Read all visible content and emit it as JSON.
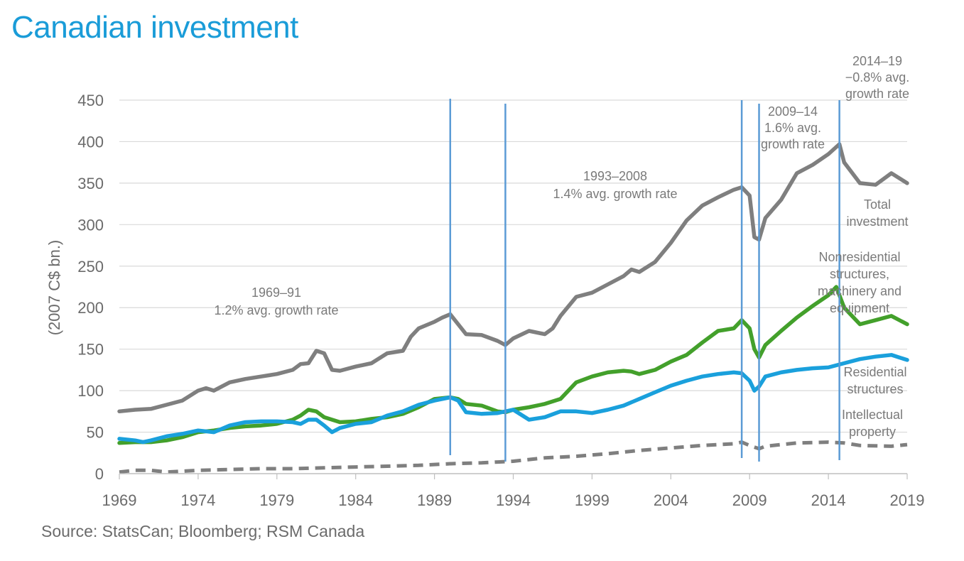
{
  "title": "Canadian investment",
  "source": "Source: StatsCan; Bloomberg; RSM  Canada",
  "colors": {
    "title": "#1a9cd8",
    "total": "#7f7f7f",
    "nonresidential": "#43a02b",
    "residential": "#1aa0dc",
    "intellectual": "#7f7f7f",
    "vlines": "#5b9bd5",
    "grid": "#d9d9d9",
    "axis": "#bfbfbf"
  },
  "chart_data": {
    "type": "line",
    "ylabel": "(2007 C$ bn.)",
    "ylim": [
      0,
      450
    ],
    "yticks": [
      "0",
      "50",
      "100",
      "150",
      "200",
      "250",
      "300",
      "350",
      "400",
      "450"
    ],
    "xlim": [
      1969,
      2019
    ],
    "xticks": [
      "1969",
      "1974",
      "1979",
      "1984",
      "1989",
      "1994",
      "1999",
      "2004",
      "2009",
      "2014",
      "2019"
    ],
    "period_markers": [
      1990.0,
      1993.5,
      2008.5,
      2009.6,
      2014.7
    ],
    "annotations": [
      {
        "lines": [
          "1969–91",
          "1.2% avg. growth rate"
        ]
      },
      {
        "lines": [
          "1993–2008",
          "1.4% avg. growth rate"
        ]
      },
      {
        "lines": [
          "2009–14",
          "1.6% avg.",
          "growth rate"
        ]
      },
      {
        "lines": [
          "2014–19",
          "−0.8% avg.",
          "growth rate"
        ]
      }
    ],
    "series": [
      {
        "name": "Total investment",
        "label_lines": [
          "Total",
          "investment"
        ],
        "style": "solid",
        "x": [
          1969,
          1970,
          1971,
          1972,
          1973,
          1974,
          1974.5,
          1975,
          1976,
          1977,
          1978,
          1979,
          1980,
          1980.5,
          1981,
          1981.5,
          1982,
          1982.5,
          1983,
          1984,
          1985,
          1986,
          1987,
          1987.5,
          1988,
          1989,
          1989.5,
          1990,
          1990.5,
          1991,
          1992,
          1993,
          1993.5,
          1994,
          1995,
          1996,
          1996.5,
          1997,
          1998,
          1999,
          2000,
          2001,
          2001.5,
          2002,
          2003,
          2004,
          2005,
          2006,
          2007,
          2008,
          2008.5,
          2009,
          2009.3,
          2009.6,
          2010,
          2011,
          2012,
          2013,
          2014,
          2014.7,
          2015,
          2016,
          2017,
          2018,
          2019
        ],
        "values": [
          75,
          77,
          78,
          83,
          88,
          100,
          103,
          100,
          110,
          114,
          117,
          120,
          125,
          132,
          133,
          148,
          145,
          125,
          124,
          129,
          133,
          145,
          148,
          165,
          175,
          183,
          188,
          192,
          180,
          168,
          167,
          160,
          155,
          163,
          172,
          168,
          175,
          190,
          213,
          218,
          228,
          238,
          246,
          243,
          255,
          278,
          305,
          323,
          333,
          342,
          345,
          335,
          285,
          282,
          308,
          330,
          362,
          372,
          385,
          397,
          375,
          350,
          348,
          362,
          350
        ]
      },
      {
        "name": "Nonresidential structures, machinery and equipment",
        "label_lines": [
          "Nonresidential",
          "structures,",
          "machinery and",
          "equipment"
        ],
        "style": "solid",
        "x": [
          1969,
          1970,
          1971,
          1972,
          1973,
          1974,
          1975,
          1976,
          1977,
          1978,
          1979,
          1980,
          1980.5,
          1981,
          1981.5,
          1982,
          1983,
          1984,
          1985,
          1986,
          1987,
          1988,
          1989,
          1990,
          1990.5,
          1991,
          1992,
          1993,
          1993.5,
          1994,
          1995,
          1996,
          1997,
          1998,
          1999,
          2000,
          2001,
          2001.5,
          2002,
          2003,
          2004,
          2005,
          2006,
          2007,
          2008,
          2008.5,
          2009,
          2009.3,
          2009.6,
          2010,
          2011,
          2012,
          2013,
          2014,
          2014.5,
          2015,
          2016,
          2017,
          2018,
          2019
        ],
        "values": [
          37,
          38,
          38,
          40,
          44,
          50,
          52,
          55,
          57,
          58,
          60,
          65,
          70,
          77,
          75,
          68,
          62,
          63,
          66,
          68,
          72,
          80,
          90,
          92,
          90,
          84,
          82,
          75,
          74,
          77,
          80,
          84,
          90,
          110,
          117,
          122,
          124,
          123,
          120,
          125,
          135,
          143,
          158,
          172,
          175,
          185,
          175,
          150,
          140,
          155,
          172,
          188,
          202,
          215,
          225,
          200,
          180,
          185,
          190,
          180
        ]
      },
      {
        "name": "Residential structures",
        "label_lines": [
          "Residential",
          "structures"
        ],
        "style": "solid",
        "x": [
          1969,
          1970,
          1970.5,
          1971,
          1972,
          1973,
          1974,
          1975,
          1976,
          1977,
          1978,
          1979,
          1980,
          1980.5,
          1981,
          1981.5,
          1982,
          1982.5,
          1983,
          1984,
          1985,
          1986,
          1987,
          1988,
          1989,
          1990,
          1990.5,
          1991,
          1992,
          1993,
          1994,
          1995,
          1996,
          1997,
          1998,
          1999,
          2000,
          2001,
          2002,
          2003,
          2004,
          2005,
          2006,
          2007,
          2008,
          2008.5,
          2009,
          2009.3,
          2009.6,
          2010,
          2011,
          2012,
          2013,
          2014,
          2015,
          2016,
          2017,
          2018,
          2018.5,
          2019
        ],
        "values": [
          42,
          40,
          38,
          40,
          45,
          48,
          52,
          50,
          58,
          62,
          63,
          63,
          62,
          60,
          65,
          65,
          58,
          50,
          55,
          60,
          62,
          70,
          75,
          83,
          88,
          92,
          88,
          74,
          72,
          73,
          77,
          65,
          68,
          75,
          75,
          73,
          77,
          82,
          90,
          98,
          106,
          112,
          117,
          120,
          122,
          121,
          112,
          100,
          105,
          117,
          122,
          125,
          127,
          128,
          133,
          138,
          141,
          143,
          140,
          137
        ]
      },
      {
        "name": "Intellectual property",
        "label_lines": [
          "Intellectual",
          "property"
        ],
        "style": "dashed",
        "x": [
          1969,
          1970,
          1971,
          1972,
          1973,
          1974,
          1976,
          1978,
          1980,
          1982,
          1984,
          1986,
          1988,
          1990,
          1992,
          1993,
          1994,
          1995,
          1996,
          1998,
          2000,
          2002,
          2004,
          2006,
          2008,
          2008.5,
          2009,
          2009.6,
          2010,
          2012,
          2014,
          2015,
          2016,
          2018,
          2019
        ],
        "values": [
          2,
          4,
          4,
          2,
          3,
          4,
          5,
          6,
          6,
          7,
          8,
          9,
          10,
          12,
          13,
          14,
          15,
          17,
          19,
          21,
          24,
          28,
          31,
          34,
          36,
          38,
          34,
          30,
          33,
          37,
          38,
          37,
          34,
          33,
          35
        ]
      }
    ]
  }
}
